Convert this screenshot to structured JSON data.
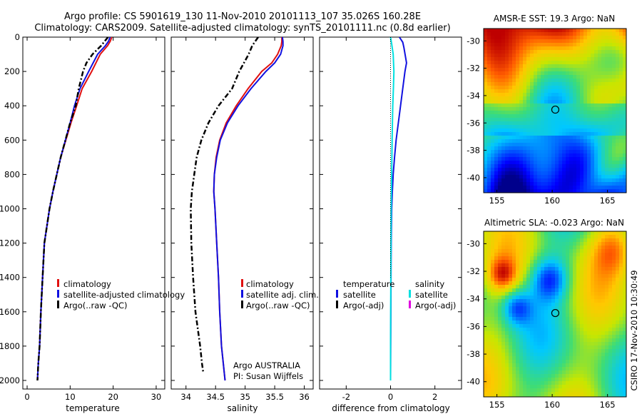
{
  "title": {
    "line1": "Argo profile: CS 5901619_130 11-Nov-2010 20101113_107 35.026S 160.28E",
    "line2": "Climatology: CARS2009. Satellite-adjusted climatology: synTS_20101111.nc (0.8d earlier)"
  },
  "side_label": "CSIRO 17-Nov-2010 10:30:49",
  "colors": {
    "climatology": "#e01010",
    "satellite": "#1010e0",
    "argo": "#000000",
    "sal_satellite": "#00e0e0",
    "sal_argo": "#e000e0"
  },
  "map_sst": {
    "title": "AMSR-E SST: 19.3 Argo: NaN",
    "x_ticks": [
      "155",
      "160",
      "165"
    ],
    "y_ticks": [
      "-30",
      "-32",
      "-34",
      "-36",
      "-38",
      "-40"
    ],
    "float_lon": 160.28,
    "float_lat": -35.026
  },
  "map_sla": {
    "title": "Altimetric SLA: -0.023 Argo: NaN",
    "x_ticks": [
      "155",
      "160",
      "165"
    ],
    "y_ticks": [
      "-30",
      "-32",
      "-34",
      "-36",
      "-38",
      "-40"
    ],
    "float_lon": 160.28,
    "float_lat": -35.026
  },
  "chart_data": [
    {
      "type": "line",
      "xlabel": "temperature",
      "ylabel": "",
      "xlim": [
        -1,
        32
      ],
      "ylim": [
        2050,
        0
      ],
      "x_ticks": [
        "0",
        "10",
        "20",
        "30"
      ],
      "y_ticks": [
        "0",
        "200",
        "400",
        "600",
        "800",
        "1000",
        "1200",
        "1400",
        "1600",
        "1800",
        "2000"
      ],
      "legend": [
        "climatology",
        "satellite-adjusted climatology",
        "Argo(..raw -QC)"
      ],
      "series": [
        {
          "name": "climatology",
          "style": "solid",
          "color": "#e01010",
          "x": [
            19.7,
            19.3,
            18.7,
            17.0,
            15.0,
            12.8,
            11.5,
            10.2,
            9.0,
            7.8,
            6.9,
            6.0,
            5.2,
            4.6,
            4.0,
            3.6,
            3.2,
            2.9,
            2.6,
            2.4
          ],
          "y": [
            0,
            25,
            50,
            100,
            200,
            300,
            400,
            500,
            600,
            700,
            800,
            900,
            1000,
            1100,
            1200,
            1400,
            1600,
            1800,
            1900,
            2000
          ]
        },
        {
          "name": "satellite-adjusted climatology",
          "style": "solid",
          "color": "#1010e0",
          "x": [
            19.3,
            18.9,
            18.2,
            16.4,
            14.3,
            12.3,
            11.0,
            10.0,
            8.9,
            7.8,
            6.9,
            6.0,
            5.2,
            4.6,
            4.0,
            3.6,
            3.2,
            2.9,
            2.6,
            2.4
          ],
          "y": [
            0,
            25,
            50,
            100,
            200,
            300,
            400,
            500,
            600,
            700,
            800,
            900,
            1000,
            1100,
            1200,
            1400,
            1600,
            1800,
            1900,
            2000
          ]
        },
        {
          "name": "Argo(..raw -QC)",
          "style": "dashdot",
          "color": "#000000",
          "x": [
            18.8,
            17.2,
            15.2,
            13.8,
            13.0,
            12.0,
            11.3,
            10.0,
            8.9,
            7.8,
            6.9,
            6.0,
            5.2,
            4.6,
            4.0,
            3.6,
            3.2,
            2.9,
            2.6,
            2.4
          ],
          "y": [
            0,
            50,
            100,
            150,
            200,
            300,
            400,
            500,
            600,
            700,
            800,
            900,
            1000,
            1100,
            1200,
            1400,
            1600,
            1800,
            1900,
            2000
          ]
        }
      ]
    },
    {
      "type": "line",
      "xlabel": "salinity",
      "ylabel": "",
      "xlim": [
        33.75,
        36.15
      ],
      "ylim": [
        2050,
        0
      ],
      "x_ticks": [
        "34",
        "34.5",
        "35",
        "35.5",
        "36"
      ],
      "legend": [
        "climatology",
        "satellite adj. clim.",
        "Argo(..raw -QC)"
      ],
      "annotation": [
        "Argo AUSTRALIA",
        "PI: Susan Wijffels"
      ],
      "series": [
        {
          "name": "climatology",
          "style": "solid",
          "color": "#e01010",
          "x": [
            35.62,
            35.62,
            35.61,
            35.55,
            35.45,
            35.28,
            35.05,
            34.85,
            34.68,
            34.57,
            34.51,
            34.48,
            34.47,
            34.49,
            34.52,
            34.55,
            34.57,
            34.6,
            34.63,
            34.66
          ],
          "y": [
            0,
            25,
            50,
            100,
            150,
            200,
            300,
            400,
            500,
            600,
            700,
            800,
            900,
            1000,
            1200,
            1400,
            1600,
            1800,
            1900,
            2000
          ]
        },
        {
          "name": "satellite adj. clim.",
          "style": "solid",
          "color": "#1010e0",
          "x": [
            35.63,
            35.64,
            35.64,
            35.6,
            35.5,
            35.35,
            35.1,
            34.88,
            34.7,
            34.58,
            34.52,
            34.48,
            34.47,
            34.49,
            34.52,
            34.55,
            34.57,
            34.6,
            34.63,
            34.66
          ],
          "y": [
            0,
            25,
            50,
            100,
            150,
            200,
            300,
            400,
            500,
            600,
            700,
            800,
            900,
            1000,
            1200,
            1400,
            1600,
            1800,
            1900,
            2000
          ]
        },
        {
          "name": "Argo(..raw -QC)",
          "style": "dashdot",
          "color": "#000000",
          "x": [
            35.22,
            35.12,
            35.06,
            34.98,
            34.9,
            34.78,
            34.55,
            34.38,
            34.26,
            34.18,
            34.14,
            34.1,
            34.08,
            34.09,
            34.12,
            34.16,
            34.2,
            34.24,
            34.27,
            34.29
          ],
          "y": [
            0,
            50,
            100,
            150,
            200,
            300,
            400,
            500,
            600,
            700,
            800,
            900,
            1000,
            1200,
            1400,
            1600,
            1700,
            1800,
            1900,
            1950
          ]
        }
      ]
    },
    {
      "type": "line",
      "xlabel": "difference from climatology",
      "ylabel": "",
      "xlim": [
        -3.2,
        3.2
      ],
      "ylim": [
        2050,
        0
      ],
      "x_ticks": [
        "-2",
        "0",
        "2"
      ],
      "legend_groups": [
        {
          "heading": "temperature",
          "items": [
            "satellite",
            "Argo(-adj)"
          ]
        },
        {
          "heading": "salinity",
          "items": [
            "satellite",
            "Argo(-adj)"
          ]
        }
      ],
      "series": [
        {
          "name": "satellite",
          "group": "temperature",
          "style": "solid",
          "color": "#1010e0",
          "x": [
            0.4,
            0.55,
            0.6,
            0.72,
            0.65,
            0.55,
            0.45,
            0.35,
            0.25,
            0.18,
            0.12,
            0.08,
            0.05,
            0.03,
            0.02,
            0.01,
            0.0
          ],
          "y": [
            0,
            30,
            60,
            150,
            200,
            300,
            400,
            500,
            600,
            700,
            800,
            900,
            1000,
            1200,
            1400,
            1700,
            2000
          ]
        },
        {
          "name": "satellite",
          "group": "salinity",
          "style": "solid",
          "color": "#00e0e0",
          "x": [
            0.0,
            0.05,
            0.12,
            0.15,
            0.13,
            0.1,
            0.07,
            0.05,
            0.03,
            0.02,
            0.01,
            0.0,
            0.0
          ],
          "y": [
            0,
            40,
            100,
            200,
            300,
            400,
            600,
            800,
            1000,
            1200,
            1500,
            1800,
            2000
          ]
        },
        {
          "name": "Argo(-adj)",
          "group": "temperature",
          "style": "dotted",
          "color": "#000000",
          "x": [
            0.0,
            0.0,
            0.0,
            0.0
          ],
          "y": [
            0,
            500,
            1000,
            1400
          ]
        }
      ]
    }
  ]
}
